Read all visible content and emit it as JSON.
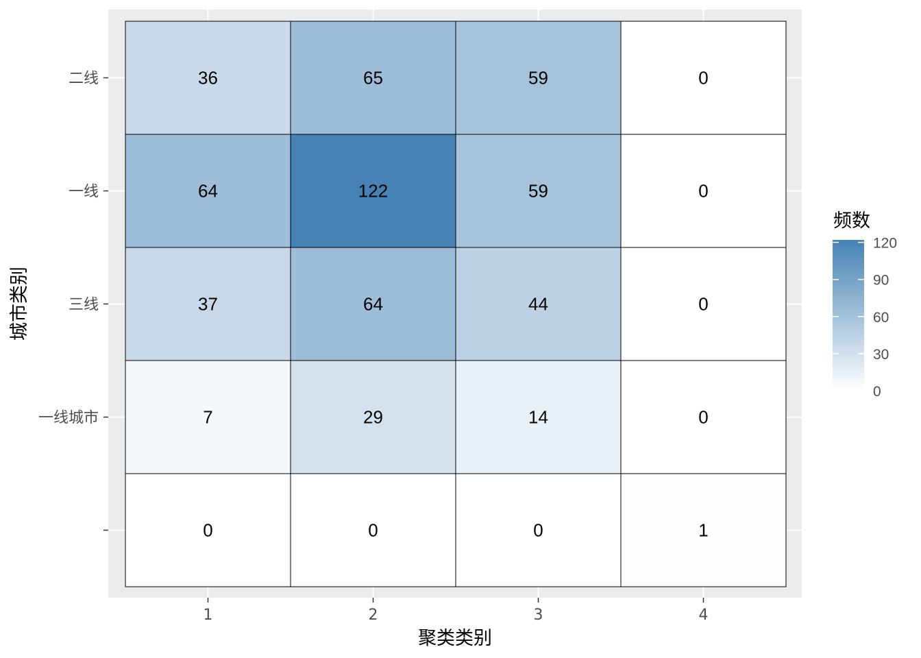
{
  "chart_data": {
    "type": "heatmap",
    "title": "",
    "xlabel": "聚类类别",
    "ylabel": "城市类别",
    "x_categories": [
      "1",
      "2",
      "3",
      "4"
    ],
    "y_categories": [
      "二线",
      "一线",
      "三线",
      "一线城市",
      ""
    ],
    "values": [
      [
        36,
        65,
        59,
        0
      ],
      [
        64,
        122,
        59,
        0
      ],
      [
        37,
        64,
        44,
        0
      ],
      [
        7,
        29,
        14,
        0
      ],
      [
        0,
        0,
        0,
        1
      ]
    ],
    "legend": {
      "title": "频数",
      "ticks": [
        0,
        30,
        60,
        90,
        120
      ],
      "range": [
        0,
        122
      ],
      "low_color": "#ffffff",
      "high_color": "#4682b4",
      "placement": "right"
    },
    "colors": {
      "panel_background": "#ebebeb",
      "grid": "#ffffff",
      "tile_border": "#000000"
    }
  }
}
